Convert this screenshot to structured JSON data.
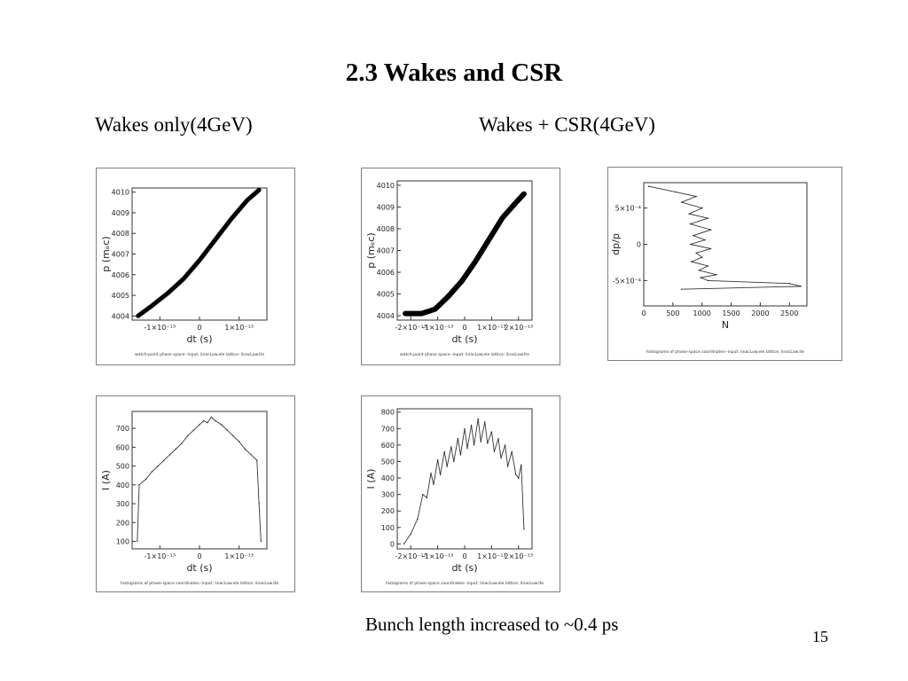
{
  "slide": {
    "title": "2.3 Wakes and CSR",
    "left_heading": "Wakes only(4GeV)",
    "right_heading": "Wakes + CSR(4GeV)",
    "footnote": "Bunch length increased to  ~0.4 ps",
    "page_number": "15"
  },
  "chart_data": [
    {
      "id": "phase-wakes",
      "type": "scatter",
      "xlabel": "dt (s)",
      "ylabel": "p  (mₑc)",
      "xticks": [
        "-1×10⁻¹³",
        "0",
        "1×10⁻¹³"
      ],
      "xtick_values": [
        -1e-13,
        0,
        1e-13
      ],
      "yticks": [
        "4004",
        "4005",
        "4006",
        "4007",
        "4008",
        "4009",
        "4010"
      ],
      "xlim": [
        -1.7e-13,
        1.7e-13
      ],
      "ylim": [
        4003.8,
        4010.2
      ],
      "x": [
        -1.55e-13,
        -1.2e-13,
        -8e-14,
        -4e-14,
        0,
        4e-14,
        8e-14,
        1.2e-13,
        1.5e-13
      ],
      "y": [
        4004.0,
        4004.5,
        4005.1,
        4005.8,
        4006.7,
        4007.7,
        4008.7,
        4009.6,
        4010.1
      ],
      "caption": "watch-point phase space--input: linacLow.ele  lattice: linacLow.lte"
    },
    {
      "id": "phase-wakes-csr",
      "type": "scatter",
      "xlabel": "dt (s)",
      "ylabel": "p  (mₑc)",
      "xticks": [
        "-2×10⁻¹³",
        "-1×10⁻¹³",
        "0",
        "1×10⁻¹³",
        "2×10⁻¹³"
      ],
      "xtick_values": [
        -2e-13,
        -1e-13,
        0,
        1e-13,
        2e-13
      ],
      "yticks": [
        "4004",
        "4005",
        "4006",
        "4007",
        "4008",
        "4009",
        "4010"
      ],
      "xlim": [
        -2.5e-13,
        2.5e-13
      ],
      "ylim": [
        4003.8,
        4010.2
      ],
      "x": [
        -2.2e-13,
        -1.6e-13,
        -1.1e-13,
        -6e-14,
        -1e-14,
        4e-14,
        9e-14,
        1.4e-13,
        1.9e-13,
        2.2e-13
      ],
      "y": [
        4004.1,
        4004.1,
        4004.3,
        4004.9,
        4005.6,
        4006.5,
        4007.5,
        4008.5,
        4009.2,
        4009.6
      ],
      "caption": "watch-point phase space--input: linacLow.ele  lattice: linacLow.lte"
    },
    {
      "id": "histogram-dp",
      "type": "line",
      "xlabel": "N",
      "ylabel": "dp/p",
      "xticks": [
        "0",
        "500",
        "1000",
        "1500",
        "2000",
        "2500"
      ],
      "xtick_values": [
        0,
        500,
        1000,
        1500,
        2000,
        2500
      ],
      "yticks": [
        "-5×10⁻⁴",
        "0",
        "5×10⁻⁴"
      ],
      "ytick_values": [
        -0.0005,
        0,
        0.0005
      ],
      "xlim": [
        0,
        2800
      ],
      "ylim": [
        -0.00085,
        0.00085
      ],
      "x": [
        80,
        550,
        900,
        650,
        1000,
        780,
        1100,
        800,
        1150,
        850,
        1050,
        800,
        1150,
        900,
        1000,
        820,
        1100,
        950,
        1250,
        980,
        1100,
        2500,
        2700,
        650
      ],
      "y": [
        0.0008,
        0.00072,
        0.00066,
        0.00058,
        0.0005,
        0.00042,
        0.00036,
        0.00028,
        0.0002,
        0.00012,
        6e-05,
        0.0,
        -6e-05,
        -0.00012,
        -0.00018,
        -0.00024,
        -0.0003,
        -0.00036,
        -0.00042,
        -0.00046,
        -0.0005,
        -0.00054,
        -0.00058,
        -0.00062
      ],
      "caption": "histograms of phase-space coordinates--input: linacLow.ele  lattice: linacLow.lte"
    },
    {
      "id": "current-wakes",
      "type": "line",
      "xlabel": "dt (s)",
      "ylabel": "I  (A)",
      "xticks": [
        "-1×10⁻¹³",
        "0",
        "1×10⁻¹³"
      ],
      "xtick_values": [
        -1e-13,
        0,
        1e-13
      ],
      "yticks": [
        "100",
        "200",
        "300",
        "400",
        "500",
        "600",
        "700"
      ],
      "ytick_values": [
        100,
        200,
        300,
        400,
        500,
        600,
        700
      ],
      "xlim": [
        -1.7e-13,
        1.7e-13
      ],
      "ylim": [
        60,
        790
      ],
      "x": [
        -1.57e-13,
        -1.52e-13,
        -1.35e-13,
        -1.2e-13,
        -1.05e-13,
        -9e-14,
        -7.5e-14,
        -6e-14,
        -4.5e-14,
        -3e-14,
        -1.5e-14,
        0,
        1e-14,
        2e-14,
        3e-14,
        4e-14,
        5.5e-14,
        7e-14,
        8.5e-14,
        1e-13,
        1.15e-13,
        1.3e-13,
        1.45e-13,
        1.5e-13,
        1.55e-13
      ],
      "y": [
        100,
        400,
        430,
        470,
        500,
        530,
        560,
        590,
        620,
        660,
        690,
        720,
        740,
        730,
        760,
        740,
        720,
        690,
        660,
        630,
        590,
        560,
        530,
        300,
        100
      ],
      "caption": "histograms of phase-space coordinates--input: linacLow.ele  lattice: linacLow.lte"
    },
    {
      "id": "current-wakes-csr",
      "type": "line",
      "xlabel": "dt (s)",
      "ylabel": "I  (A)",
      "xticks": [
        "-2×10⁻¹³",
        "-1×10⁻¹³",
        "0",
        "1×10⁻¹³",
        "2×10⁻¹³"
      ],
      "xtick_values": [
        -2e-13,
        -1e-13,
        0,
        1e-13,
        2e-13
      ],
      "yticks": [
        "0",
        "100",
        "200",
        "300",
        "400",
        "500",
        "600",
        "700",
        "800"
      ],
      "ytick_values": [
        0,
        100,
        200,
        300,
        400,
        500,
        600,
        700,
        800
      ],
      "xlim": [
        -2.5e-13,
        2.5e-13
      ],
      "ylim": [
        -30,
        820
      ],
      "x": [
        -2.25e-13,
        -2e-13,
        -1.75e-13,
        -1.55e-13,
        -1.4e-13,
        -1.25e-13,
        -1.15e-13,
        -1e-13,
        -9e-14,
        -7.5e-14,
        -6.5e-14,
        -5e-14,
        -4e-14,
        -2.5e-14,
        -1.5e-14,
        0,
        1e-14,
        2.5e-14,
        3.5e-14,
        5e-14,
        6e-14,
        7.5e-14,
        8.5e-14,
        1e-13,
        1.1e-13,
        1.25e-13,
        1.35e-13,
        1.5e-13,
        1.6e-13,
        1.75e-13,
        1.9e-13,
        2e-13,
        2.1e-13,
        2.2e-13
      ],
      "y": [
        0,
        60,
        150,
        300,
        280,
        430,
        360,
        510,
        420,
        560,
        470,
        590,
        500,
        640,
        540,
        700,
        580,
        720,
        600,
        760,
        620,
        740,
        610,
        680,
        560,
        640,
        520,
        600,
        470,
        560,
        420,
        400,
        480,
        90
      ],
      "caption": "histograms of phase-space coordinates--input: linacLow.ele  lattice: linacLow.lte"
    }
  ]
}
